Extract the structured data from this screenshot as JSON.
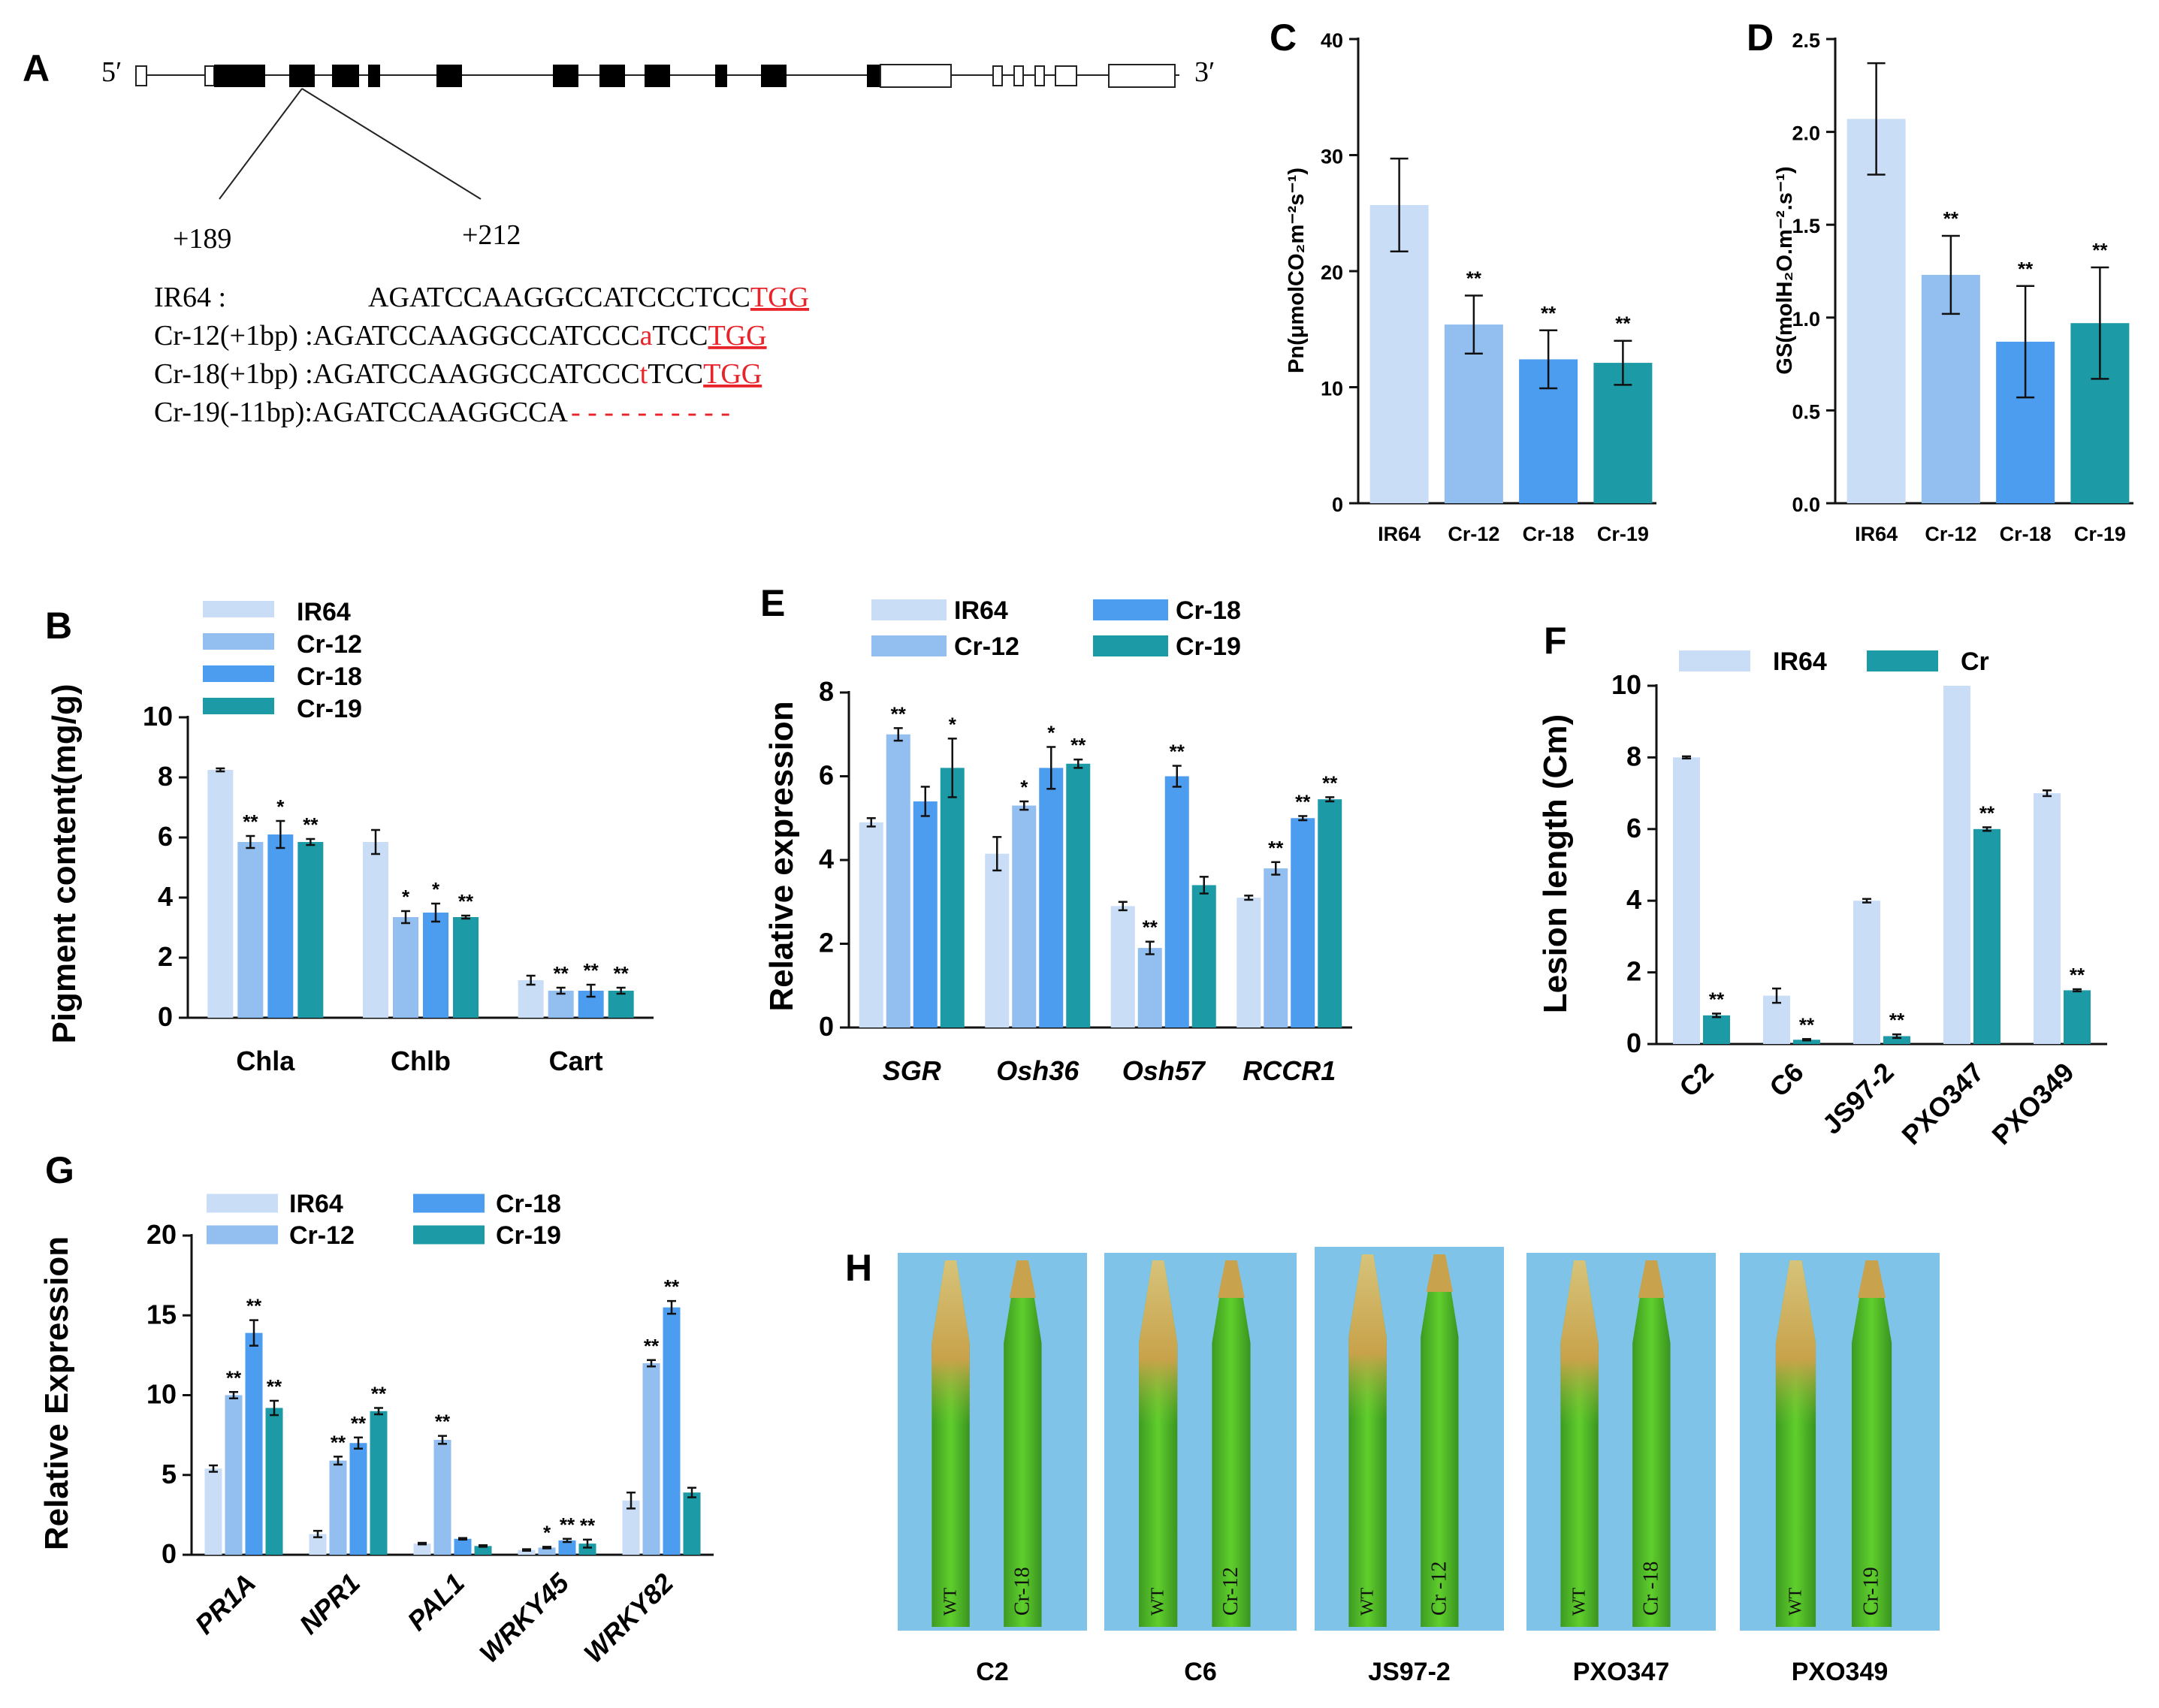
{
  "colors": {
    "IR64": "#c9ddf6",
    "Cr-12": "#92bef0",
    "Cr-18": "#4c9cef",
    "Cr-19": "#1c9aa6",
    "Cr": "#1c9aa6",
    "red": "#e8232a",
    "leaf_bg": "#7fc3e9"
  },
  "panelA": {
    "label": "A",
    "five": "5′",
    "three": "3′",
    "pos_start": "+189",
    "pos_end": "+212",
    "lines": [
      {
        "name": "IR64 :",
        "seq": "AGATCCAAGGCCATCCCTCC",
        "pam": "TGG",
        "ins": "",
        "pre": "",
        "post": ""
      },
      {
        "name": "Cr-12(+1bp) :",
        "pre": "AGATCCAAGGCCATCCC",
        "ins": "a",
        "post": "TCC",
        "pam": "TGG",
        "seq": ""
      },
      {
        "name": "Cr-18(+1bp) :",
        "pre": "AGATCCAAGGCCATCCC",
        "ins": "t",
        "post": "TCC",
        "pam": "TGG",
        "seq": ""
      },
      {
        "name": "Cr-19(-11bp):",
        "seq": "AGATCCAAGGCCA",
        "del": "- - - - - - - - - -",
        "pam": "",
        "ins": "",
        "pre": "",
        "post": ""
      }
    ]
  },
  "chart_data": [
    {
      "id": "B",
      "label": "B",
      "type": "bar",
      "ylabel": "Pigment content(mg/g)",
      "ylim": [
        0,
        10
      ],
      "yticks": [
        "0",
        "2",
        "4",
        "6",
        "8",
        "10"
      ],
      "categories": [
        "Chla",
        "Chlb",
        "Cart"
      ],
      "legend": [
        "IR64",
        "Cr-12",
        "Cr-18",
        "Cr-19"
      ],
      "series": [
        {
          "name": "IR64",
          "values": [
            8.25,
            5.85,
            1.25
          ],
          "err": [
            0.05,
            0.4,
            0.15
          ],
          "sig": [
            "",
            "",
            ""
          ]
        },
        {
          "name": "Cr-12",
          "values": [
            5.85,
            3.35,
            0.9
          ],
          "err": [
            0.2,
            0.2,
            0.1
          ],
          "sig": [
            "**",
            "*",
            "**"
          ]
        },
        {
          "name": "Cr-18",
          "values": [
            6.1,
            3.5,
            0.9
          ],
          "err": [
            0.45,
            0.3,
            0.2
          ],
          "sig": [
            "*",
            "*",
            "**"
          ]
        },
        {
          "name": "Cr-19",
          "values": [
            5.85,
            3.35,
            0.9
          ],
          "err": [
            0.1,
            0.05,
            0.1
          ],
          "sig": [
            "**",
            "**",
            "**"
          ]
        }
      ]
    },
    {
      "id": "C",
      "label": "C",
      "type": "bar",
      "ylabel": "Pn(μmolCO₂m⁻²s⁻¹)",
      "ylim": [
        0,
        40
      ],
      "yticks": [
        "0",
        "10",
        "20",
        "30",
        "40"
      ],
      "categories": [
        "IR64",
        "Cr-12",
        "Cr-18",
        "Cr-19"
      ],
      "values": [
        25.7,
        15.4,
        12.4,
        12.1
      ],
      "err": [
        4.0,
        2.5,
        2.5,
        1.9
      ],
      "sig": [
        "",
        "**",
        "**",
        "**"
      ]
    },
    {
      "id": "D",
      "label": "D",
      "type": "bar",
      "ylabel": "GS(molH₂O.m⁻².s⁻¹)",
      "ylim": [
        0,
        2.5
      ],
      "yticks": [
        "0.0",
        "0.5",
        "1.0",
        "1.5",
        "2.0",
        "2.5"
      ],
      "categories": [
        "IR64",
        "Cr-12",
        "Cr-18",
        "Cr-19"
      ],
      "values": [
        2.07,
        1.23,
        0.87,
        0.97
      ],
      "err": [
        0.3,
        0.21,
        0.3,
        0.3
      ],
      "sig": [
        "",
        "**",
        "**",
        "**"
      ]
    },
    {
      "id": "E",
      "label": "E",
      "type": "bar",
      "ylabel": "Relative expression",
      "ylim": [
        0,
        8
      ],
      "yticks": [
        "0",
        "2",
        "4",
        "6",
        "8"
      ],
      "categories": [
        "SGR",
        "Osh36",
        "Osh57",
        "RCCR1"
      ],
      "italic_categories": true,
      "legend": [
        "IR64",
        "Cr-12",
        "Cr-18",
        "Cr-19"
      ],
      "series": [
        {
          "name": "IR64",
          "values": [
            4.9,
            4.15,
            2.9,
            3.1
          ],
          "err": [
            0.1,
            0.4,
            0.1,
            0.05
          ],
          "sig": [
            "",
            "",
            "",
            ""
          ]
        },
        {
          "name": "Cr-12",
          "values": [
            7.0,
            5.3,
            1.9,
            3.8
          ],
          "err": [
            0.15,
            0.1,
            0.15,
            0.15
          ],
          "sig": [
            "**",
            "*",
            "**",
            "**"
          ]
        },
        {
          "name": "Cr-18",
          "values": [
            5.4,
            6.2,
            6.0,
            5.0
          ],
          "err": [
            0.35,
            0.5,
            0.25,
            0.05
          ],
          "sig": [
            "",
            "*",
            "**",
            "**"
          ]
        },
        {
          "name": "Cr-19",
          "values": [
            6.2,
            6.3,
            3.4,
            5.45
          ],
          "err": [
            0.7,
            0.1,
            0.2,
            0.05
          ],
          "sig": [
            "*",
            "**",
            "",
            "**"
          ]
        }
      ]
    },
    {
      "id": "F",
      "label": "F",
      "type": "bar",
      "ylabel": "Lesion length (Cm)",
      "ylim": [
        0,
        10
      ],
      "yticks": [
        "0",
        "2",
        "4",
        "6",
        "8",
        "10"
      ],
      "categories": [
        "C2",
        "C6",
        "JS97-2",
        "PXO347",
        "PXO349"
      ],
      "rotated_categories": true,
      "legend": [
        "IR64",
        "Cr"
      ],
      "series": [
        {
          "name": "IR64",
          "values": [
            8.0,
            1.35,
            4.0,
            10.0,
            7.0
          ],
          "err": [
            0.03,
            0.2,
            0.05,
            0.0,
            0.08
          ],
          "sig": [
            "",
            "",
            "",
            "",
            ""
          ]
        },
        {
          "name": "Cr",
          "values": [
            0.8,
            0.12,
            0.22,
            6.0,
            1.5
          ],
          "err": [
            0.05,
            0.02,
            0.05,
            0.05,
            0.03
          ],
          "sig": [
            "**",
            "**",
            "**",
            "**",
            "**"
          ]
        }
      ]
    },
    {
      "id": "G",
      "label": "G",
      "type": "bar",
      "ylabel": "Relative Expression",
      "ylim": [
        0,
        20
      ],
      "yticks": [
        "0",
        "5",
        "10",
        "15",
        "20"
      ],
      "categories": [
        "PR1A",
        "NPR1",
        "PAL1",
        "WRKY45",
        "WRKY82"
      ],
      "italic_categories": true,
      "rotated_categories": true,
      "legend": [
        "IR64",
        "Cr-12",
        "Cr-18",
        "Cr-19"
      ],
      "series": [
        {
          "name": "IR64",
          "values": [
            5.4,
            1.3,
            0.7,
            0.3,
            3.4
          ],
          "err": [
            0.2,
            0.2,
            0.05,
            0.05,
            0.5
          ],
          "sig": [
            "",
            "",
            "",
            "",
            ""
          ]
        },
        {
          "name": "Cr-12",
          "values": [
            10.0,
            5.9,
            7.2,
            0.45,
            12.0
          ],
          "err": [
            0.2,
            0.25,
            0.25,
            0.05,
            0.2
          ],
          "sig": [
            "**",
            "**",
            "**",
            "*",
            "**"
          ]
        },
        {
          "name": "Cr-18",
          "values": [
            13.9,
            7.0,
            1.0,
            0.9,
            15.5
          ],
          "err": [
            0.8,
            0.35,
            0.05,
            0.1,
            0.4
          ],
          "sig": [
            "**",
            "**",
            "",
            "**",
            "**"
          ]
        },
        {
          "name": "Cr-19",
          "values": [
            9.2,
            9.0,
            0.55,
            0.7,
            3.9
          ],
          "err": [
            0.45,
            0.2,
            0.05,
            0.25,
            0.3
          ],
          "sig": [
            "**",
            "**",
            "",
            "**",
            ""
          ]
        }
      ]
    }
  ],
  "panelH": {
    "label": "H",
    "photos": [
      {
        "strain": "C2",
        "left": "WT",
        "right": "Cr-18"
      },
      {
        "strain": "C6",
        "left": "WT",
        "right": "Cr-12"
      },
      {
        "strain": "JS97-2",
        "left": "WT",
        "right": "Cr -12"
      },
      {
        "strain": "PXO347",
        "left": "WT",
        "right": "Cr  -18"
      },
      {
        "strain": "PXO349",
        "left": "WT",
        "right": "Cr-19"
      }
    ]
  }
}
